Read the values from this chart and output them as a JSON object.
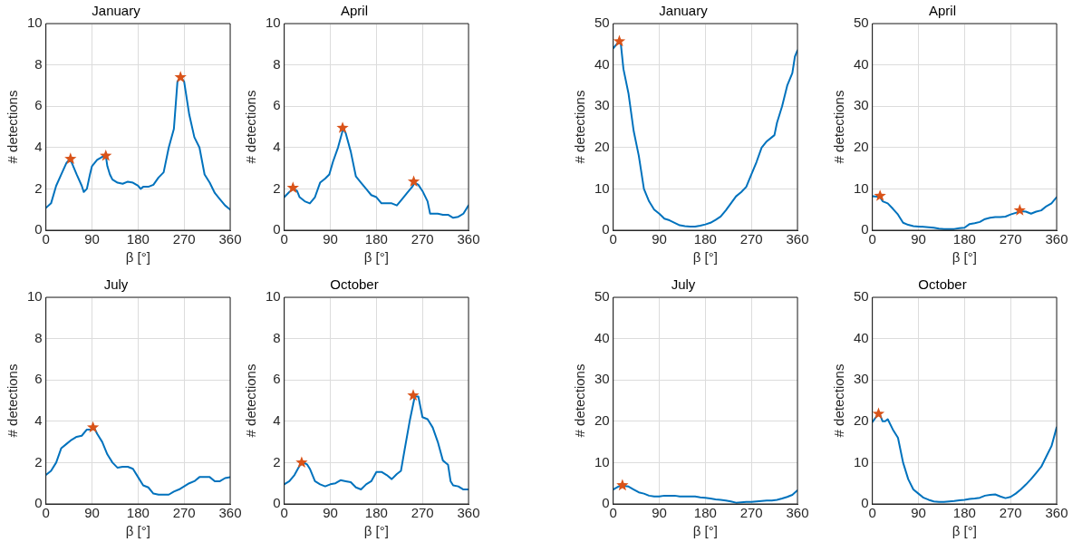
{
  "chart_data": [
    {
      "type": "line",
      "title": "January",
      "xlabel": "β [°]",
      "ylabel": "# detections",
      "xlim": [
        0,
        360
      ],
      "xticks": [
        0,
        90,
        180,
        270,
        360
      ],
      "ylim": [
        0,
        10
      ],
      "yticks": [
        0,
        2,
        4,
        6,
        8,
        10
      ],
      "grid": true,
      "series": [
        {
          "type": "line",
          "color": "#0072bd",
          "x": [
            0,
            10,
            20,
            30,
            40,
            45,
            50,
            60,
            70,
            74,
            80,
            86,
            90,
            100,
            110,
            117,
            120,
            125,
            130,
            140,
            150,
            160,
            170,
            180,
            185,
            190,
            200,
            210,
            220,
            230,
            240,
            250,
            257,
            263,
            270,
            280,
            290,
            300,
            310,
            320,
            330,
            340,
            350,
            360
          ],
          "values": [
            1.08,
            1.3,
            2.15,
            2.7,
            3.25,
            3.4,
            3.3,
            2.7,
            2.15,
            1.85,
            2.0,
            2.7,
            3.1,
            3.4,
            3.55,
            3.6,
            3.1,
            2.7,
            2.45,
            2.3,
            2.25,
            2.35,
            2.3,
            2.15,
            2.0,
            2.1,
            2.1,
            2.2,
            2.55,
            2.8,
            4.0,
            4.9,
            7.2,
            7.4,
            7.2,
            5.6,
            4.5,
            4.0,
            2.7,
            2.3,
            1.8,
            1.5,
            1.2,
            1.0
          ]
        },
        {
          "type": "scatter",
          "marker": "star",
          "color": "#d95319",
          "x": [
            48,
            117,
            263
          ],
          "values": [
            3.45,
            3.6,
            7.4
          ]
        }
      ]
    },
    {
      "type": "line",
      "title": "April",
      "xlabel": "β [°]",
      "ylabel": "# detections",
      "xlim": [
        0,
        360
      ],
      "xticks": [
        0,
        90,
        180,
        270,
        360
      ],
      "ylim": [
        0,
        10
      ],
      "yticks": [
        0,
        2,
        4,
        6,
        8,
        10
      ],
      "grid": true,
      "series": [
        {
          "type": "line",
          "color": "#0072bd",
          "x": [
            0,
            10,
            18,
            25,
            30,
            40,
            50,
            60,
            70,
            80,
            88,
            95,
            105,
            115,
            120,
            130,
            140,
            150,
            160,
            170,
            180,
            190,
            200,
            210,
            220,
            230,
            240,
            250,
            255,
            262,
            270,
            280,
            285,
            300,
            310,
            320,
            330,
            340,
            350,
            360
          ],
          "values": [
            1.6,
            1.85,
            2.0,
            1.9,
            1.6,
            1.4,
            1.3,
            1.6,
            2.3,
            2.5,
            2.7,
            3.3,
            4.0,
            4.9,
            4.7,
            3.8,
            2.6,
            2.3,
            2.0,
            1.7,
            1.6,
            1.3,
            1.3,
            1.3,
            1.2,
            1.5,
            1.8,
            2.1,
            2.3,
            2.2,
            1.9,
            1.4,
            0.8,
            0.8,
            0.75,
            0.75,
            0.6,
            0.65,
            0.8,
            1.2
          ]
        },
        {
          "type": "scatter",
          "marker": "star",
          "color": "#d95319",
          "x": [
            17,
            114,
            253
          ],
          "values": [
            2.05,
            4.95,
            2.35
          ]
        }
      ]
    },
    {
      "type": "line",
      "title": "January",
      "xlabel": "β [°]",
      "ylabel": "# detections",
      "xlim": [
        0,
        360
      ],
      "xticks": [
        0,
        90,
        180,
        270,
        360
      ],
      "ylim": [
        0,
        50
      ],
      "yticks": [
        0,
        10,
        20,
        30,
        40,
        50
      ],
      "grid": true,
      "series": [
        {
          "type": "line",
          "color": "#0072bd",
          "x": [
            0,
            10,
            15,
            20,
            30,
            40,
            50,
            60,
            70,
            80,
            90,
            100,
            110,
            120,
            130,
            140,
            150,
            160,
            170,
            180,
            190,
            200,
            210,
            220,
            230,
            240,
            250,
            260,
            270,
            280,
            290,
            300,
            310,
            315,
            320,
            330,
            340,
            350,
            355,
            360
          ],
          "values": [
            44,
            45.5,
            45,
            39,
            33,
            24,
            18,
            10,
            7,
            5,
            4,
            2.8,
            2.4,
            1.8,
            1.2,
            1.0,
            0.9,
            0.9,
            1.1,
            1.4,
            1.8,
            2.5,
            3.3,
            4.8,
            6.5,
            8.2,
            9.2,
            10.5,
            13.5,
            16.5,
            20,
            21.5,
            22.5,
            23,
            26,
            30,
            35,
            38,
            42,
            43.5
          ]
        },
        {
          "type": "scatter",
          "marker": "star",
          "color": "#d95319",
          "x": [
            12
          ],
          "values": [
            45.7
          ]
        }
      ]
    },
    {
      "type": "line",
      "title": "April",
      "xlabel": "β [°]",
      "ylabel": "# detections",
      "xlim": [
        0,
        360
      ],
      "xticks": [
        0,
        90,
        180,
        270,
        360
      ],
      "ylim": [
        0,
        50
      ],
      "yticks": [
        0,
        10,
        20,
        30,
        40,
        50
      ],
      "grid": true,
      "series": [
        {
          "type": "line",
          "color": "#0072bd",
          "x": [
            0,
            10,
            15,
            20,
            30,
            40,
            50,
            60,
            70,
            80,
            90,
            100,
            110,
            120,
            130,
            140,
            150,
            160,
            170,
            180,
            190,
            200,
            210,
            220,
            230,
            240,
            250,
            260,
            270,
            280,
            290,
            300,
            310,
            320,
            330,
            340,
            350,
            360
          ],
          "values": [
            8.2,
            8.1,
            8,
            7,
            6.5,
            5.2,
            3.8,
            1.8,
            1.3,
            1.0,
            0.9,
            0.8,
            0.7,
            0.6,
            0.4,
            0.3,
            0.3,
            0.3,
            0.5,
            0.6,
            1.5,
            1.7,
            2.0,
            2.7,
            3.0,
            3.2,
            3.2,
            3.3,
            3.8,
            4.2,
            4.6,
            4.5,
            4.0,
            4.5,
            4.8,
            5.8,
            6.5,
            8.0
          ]
        },
        {
          "type": "scatter",
          "marker": "star",
          "color": "#d95319",
          "x": [
            15,
            288
          ],
          "values": [
            8.3,
            4.8
          ]
        }
      ]
    },
    {
      "type": "line",
      "title": "July",
      "xlabel": "β [°]",
      "ylabel": "# detections",
      "xlim": [
        0,
        360
      ],
      "xticks": [
        0,
        90,
        180,
        270,
        360
      ],
      "ylim": [
        0,
        10
      ],
      "yticks": [
        0,
        2,
        4,
        6,
        8,
        10
      ],
      "grid": true,
      "series": [
        {
          "type": "line",
          "color": "#0072bd",
          "x": [
            0,
            10,
            20,
            30,
            40,
            50,
            60,
            70,
            80,
            90,
            95,
            100,
            110,
            120,
            130,
            140,
            150,
            160,
            170,
            180,
            190,
            200,
            210,
            220,
            230,
            240,
            250,
            260,
            270,
            280,
            290,
            300,
            310,
            320,
            330,
            340,
            350,
            360
          ],
          "values": [
            1.4,
            1.6,
            2.0,
            2.7,
            2.9,
            3.1,
            3.25,
            3.3,
            3.6,
            3.6,
            3.65,
            3.4,
            3.0,
            2.4,
            2.0,
            1.75,
            1.8,
            1.8,
            1.7,
            1.3,
            0.9,
            0.8,
            0.5,
            0.45,
            0.45,
            0.45,
            0.6,
            0.7,
            0.85,
            1.0,
            1.1,
            1.3,
            1.3,
            1.3,
            1.1,
            1.1,
            1.25,
            1.3
          ]
        },
        {
          "type": "scatter",
          "marker": "star",
          "color": "#d95319",
          "x": [
            92
          ],
          "values": [
            3.7
          ]
        }
      ]
    },
    {
      "type": "line",
      "title": "October",
      "xlabel": "β [°]",
      "ylabel": "# detections",
      "xlim": [
        0,
        360
      ],
      "xticks": [
        0,
        90,
        180,
        270,
        360
      ],
      "ylim": [
        0,
        10
      ],
      "yticks": [
        0,
        2,
        4,
        6,
        8,
        10
      ],
      "grid": true,
      "series": [
        {
          "type": "line",
          "color": "#0072bd",
          "x": [
            0,
            10,
            20,
            30,
            38,
            45,
            50,
            60,
            70,
            80,
            90,
            100,
            110,
            120,
            130,
            140,
            150,
            160,
            170,
            180,
            190,
            200,
            210,
            220,
            228,
            235,
            245,
            255,
            262,
            270,
            280,
            290,
            300,
            310,
            320,
            325,
            330,
            340,
            350,
            360
          ],
          "values": [
            0.95,
            1.1,
            1.4,
            1.85,
            2.0,
            1.9,
            1.7,
            1.1,
            0.95,
            0.85,
            0.95,
            1.0,
            1.15,
            1.1,
            1.05,
            0.8,
            0.7,
            0.95,
            1.1,
            1.55,
            1.55,
            1.4,
            1.2,
            1.45,
            1.6,
            2.6,
            4.0,
            5.2,
            5.2,
            4.2,
            4.1,
            3.7,
            3.0,
            2.1,
            1.9,
            1.1,
            0.9,
            0.85,
            0.7,
            0.7
          ]
        },
        {
          "type": "scatter",
          "marker": "star",
          "color": "#d95319",
          "x": [
            34,
            252
          ],
          "values": [
            2.0,
            5.25
          ]
        }
      ]
    },
    {
      "type": "line",
      "title": "July",
      "xlabel": "β [°]",
      "ylabel": "# detections",
      "xlim": [
        0,
        360
      ],
      "xticks": [
        0,
        90,
        180,
        270,
        360
      ],
      "ylim": [
        0,
        50
      ],
      "yticks": [
        0,
        10,
        20,
        30,
        40,
        50
      ],
      "grid": true,
      "series": [
        {
          "type": "line",
          "color": "#0072bd",
          "x": [
            0,
            10,
            20,
            30,
            40,
            50,
            60,
            70,
            80,
            90,
            100,
            110,
            120,
            130,
            140,
            150,
            160,
            170,
            180,
            190,
            200,
            210,
            220,
            230,
            240,
            250,
            260,
            270,
            280,
            290,
            300,
            310,
            320,
            330,
            340,
            350,
            360
          ],
          "values": [
            3.5,
            4.2,
            4.4,
            4.2,
            3.5,
            2.8,
            2.5,
            2.0,
            1.8,
            1.8,
            2.0,
            2.0,
            2.0,
            1.8,
            1.8,
            1.8,
            1.8,
            1.6,
            1.5,
            1.3,
            1.1,
            1.0,
            0.8,
            0.6,
            0.3,
            0.4,
            0.5,
            0.5,
            0.6,
            0.7,
            0.8,
            0.8,
            1.0,
            1.3,
            1.7,
            2.2,
            3.3
          ]
        },
        {
          "type": "scatter",
          "marker": "star",
          "color": "#d95319",
          "x": [
            18
          ],
          "values": [
            4.5
          ]
        }
      ]
    },
    {
      "type": "line",
      "title": "October",
      "xlabel": "β [°]",
      "ylabel": "# detections",
      "xlim": [
        0,
        360
      ],
      "xticks": [
        0,
        90,
        180,
        270,
        360
      ],
      "ylim": [
        0,
        50
      ],
      "yticks": [
        0,
        10,
        20,
        30,
        40,
        50
      ],
      "grid": true,
      "series": [
        {
          "type": "line",
          "color": "#0072bd",
          "x": [
            0,
            10,
            15,
            20,
            25,
            30,
            40,
            50,
            60,
            70,
            80,
            90,
            100,
            110,
            120,
            130,
            140,
            150,
            160,
            170,
            180,
            190,
            200,
            210,
            220,
            230,
            240,
            250,
            260,
            270,
            280,
            290,
            300,
            310,
            320,
            330,
            340,
            350,
            360
          ],
          "values": [
            19.8,
            21.5,
            21.5,
            20,
            20,
            20.5,
            18,
            16,
            10,
            6,
            3.5,
            2.5,
            1.5,
            1.0,
            0.6,
            0.5,
            0.5,
            0.6,
            0.7,
            0.9,
            1.0,
            1.2,
            1.3,
            1.5,
            2.0,
            2.2,
            2.3,
            1.8,
            1.4,
            1.7,
            2.5,
            3.5,
            4.7,
            6,
            7.5,
            9,
            11.5,
            14,
            18.5
          ]
        },
        {
          "type": "scatter",
          "marker": "star",
          "color": "#d95319",
          "x": [
            12
          ],
          "values": [
            21.8
          ]
        }
      ]
    }
  ]
}
